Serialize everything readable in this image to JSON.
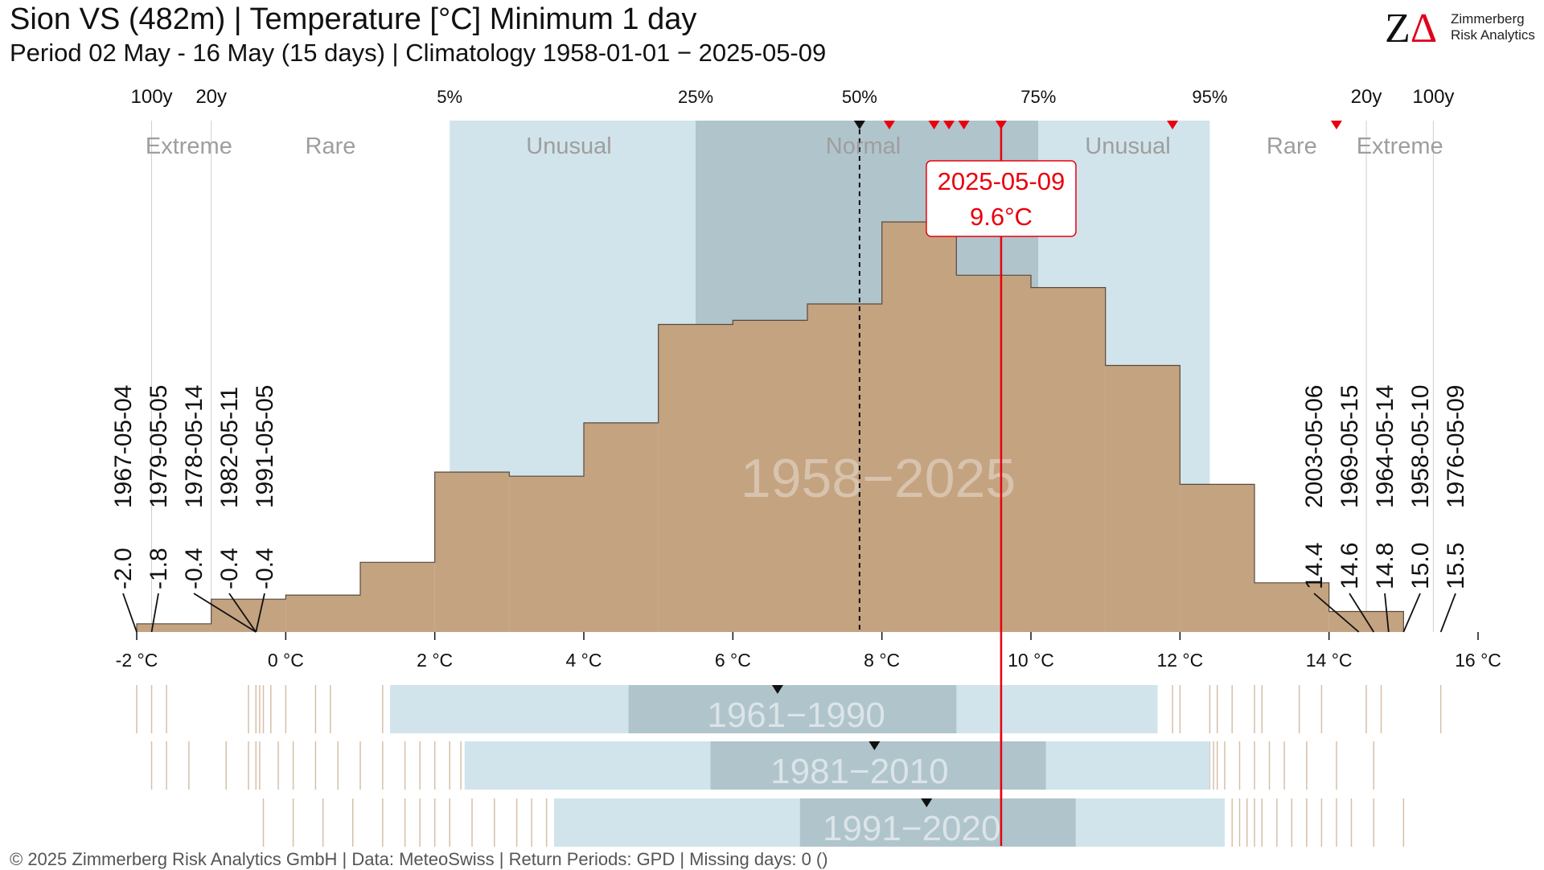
{
  "header": {
    "title": "Sion  VS (482m) | Temperature [°C] Minimum 1 day",
    "subtitle": "Period 02 May - 16 May (15 days) | Climatology 1958-01-01 − 2025-05-09"
  },
  "logo": {
    "mark_z": "Z",
    "mark_delta": "Δ",
    "line1": "Zimmerberg",
    "line2": "Risk Analytics"
  },
  "footer": {
    "text": "©  2025 Zimmerberg Risk Analytics GmbH | Data: MeteoSwiss | Return Periods: GPD | Missing days: 0 ()"
  },
  "colors": {
    "histogram_fill": "#c4a381",
    "histogram_stroke": "#5a4a3a",
    "unusual_band": "#d1e4eb",
    "normal_band": "#b0c4cc",
    "highlight": "#e8000d",
    "tick_marks": "#d6bfa8",
    "band_text": "#9e9e9e"
  },
  "chart_data": {
    "type": "bar",
    "period_label": "1958−2025",
    "xlim": [
      -2,
      16
    ],
    "x_ticks": [
      {
        "value": -2,
        "label": "-2 °C"
      },
      {
        "value": 0,
        "label": "0 °C"
      },
      {
        "value": 2,
        "label": "2 °C"
      },
      {
        "value": 4,
        "label": "4 °C"
      },
      {
        "value": 6,
        "label": "6 °C"
      },
      {
        "value": 8,
        "label": "8 °C"
      },
      {
        "value": 10,
        "label": "10 °C"
      },
      {
        "value": 12,
        "label": "12 °C"
      },
      {
        "value": 14,
        "label": "14 °C"
      },
      {
        "value": 16,
        "label": "16 °C"
      }
    ],
    "histogram": {
      "bin_edges": [
        -2,
        -1,
        0,
        1,
        2,
        3,
        4,
        5,
        6,
        7,
        8,
        9,
        10,
        11,
        12,
        13,
        14,
        15
      ],
      "relative_height": [
        0.02,
        0.08,
        0.09,
        0.17,
        0.39,
        0.38,
        0.51,
        0.75,
        0.76,
        0.8,
        1.0,
        0.87,
        0.84,
        0.65,
        0.36,
        0.12,
        0.05
      ]
    },
    "percentiles": [
      {
        "label": "5%",
        "value": 2.2
      },
      {
        "label": "25%",
        "value": 5.5
      },
      {
        "label": "50%",
        "value": 7.7
      },
      {
        "label": "75%",
        "value": 10.1
      },
      {
        "label": "95%",
        "value": 12.4
      }
    ],
    "return_periods": [
      {
        "label": "100y",
        "value": -1.8
      },
      {
        "label": "20y",
        "value": -1.0
      },
      {
        "label": "20y",
        "value": 14.5
      },
      {
        "label": "100y",
        "value": 15.4
      }
    ],
    "categories": [
      {
        "label": "Extreme",
        "value": -1.3
      },
      {
        "label": "Rare",
        "value": 0.6
      },
      {
        "label": "Unusual",
        "value": 3.8
      },
      {
        "label": "Normal",
        "value": 7.75
      },
      {
        "label": "Unusual",
        "value": 11.3
      },
      {
        "label": "Rare",
        "value": 13.5
      },
      {
        "label": "Extreme",
        "value": 14.95
      }
    ],
    "median": 7.7,
    "recent_markers": [
      8.1,
      8.7,
      8.9,
      9.1,
      9.6,
      11.9,
      14.1
    ],
    "highlight": {
      "date": "2025-05-09",
      "value": 9.6,
      "label": "9.6°C"
    },
    "low_extremes": [
      {
        "date": "1967-05-04",
        "value": -2.0,
        "label": "-2.0"
      },
      {
        "date": "1979-05-05",
        "value": -1.8,
        "label": "-1.8"
      },
      {
        "date": "1978-05-14",
        "value": -0.4,
        "label": "-0.4"
      },
      {
        "date": "1982-05-11",
        "value": -0.4,
        "label": "-0.4"
      },
      {
        "date": "1991-05-05",
        "value": -0.4,
        "label": "-0.4"
      }
    ],
    "high_extremes": [
      {
        "date": "2003-05-06",
        "value": 14.4,
        "label": "14.4"
      },
      {
        "date": "1969-05-15",
        "value": 14.6,
        "label": "14.6"
      },
      {
        "date": "1964-05-14",
        "value": 14.8,
        "label": "14.8"
      },
      {
        "date": "1958-05-10",
        "value": 15.0,
        "label": "15.0"
      },
      {
        "date": "1976-05-09",
        "value": 15.5,
        "label": "15.5"
      }
    ],
    "reference_periods": [
      {
        "label": "1961−1990",
        "p5": 1.4,
        "p25": 4.6,
        "p75": 9.0,
        "p95": 11.7,
        "median": 6.6,
        "low_ticks": [
          -2.0,
          -1.8,
          -1.6,
          -0.5,
          -0.4,
          -0.35,
          -0.3,
          -0.2,
          0.0,
          0.4,
          0.6,
          1.3
        ],
        "high_ticks": [
          11.9,
          12.0,
          12.4,
          12.5,
          12.7,
          13.0,
          13.1,
          13.6,
          13.9,
          14.5,
          14.7,
          15.5
        ]
      },
      {
        "label": "1981−2010",
        "p5": 2.4,
        "p25": 5.7,
        "p75": 10.2,
        "p95": 12.4,
        "median": 7.9,
        "low_ticks": [
          -1.8,
          -1.6,
          -1.3,
          -0.8,
          -0.5,
          -0.4,
          -0.35,
          -0.1,
          0.1,
          0.4,
          0.7,
          1.0,
          1.3,
          1.6,
          1.8,
          2.0,
          2.2,
          2.35
        ],
        "high_ticks": [
          12.4,
          12.45,
          12.5,
          12.6,
          12.8,
          13.0,
          13.2,
          13.4,
          13.7,
          14.1,
          14.6
        ]
      },
      {
        "label": "1991−2020",
        "p5": 3.6,
        "p25": 6.9,
        "p75": 10.6,
        "p95": 12.6,
        "median": 8.6,
        "low_ticks": [
          -0.3,
          0.1,
          0.5,
          0.9,
          1.3,
          1.6,
          1.8,
          2.0,
          2.2,
          2.5,
          2.8,
          3.1,
          3.3,
          3.5
        ],
        "high_ticks": [
          12.7,
          12.8,
          12.9,
          13.0,
          13.1,
          13.3,
          13.5,
          13.7,
          13.9,
          14.1,
          14.3,
          14.6,
          15.0
        ]
      }
    ]
  }
}
